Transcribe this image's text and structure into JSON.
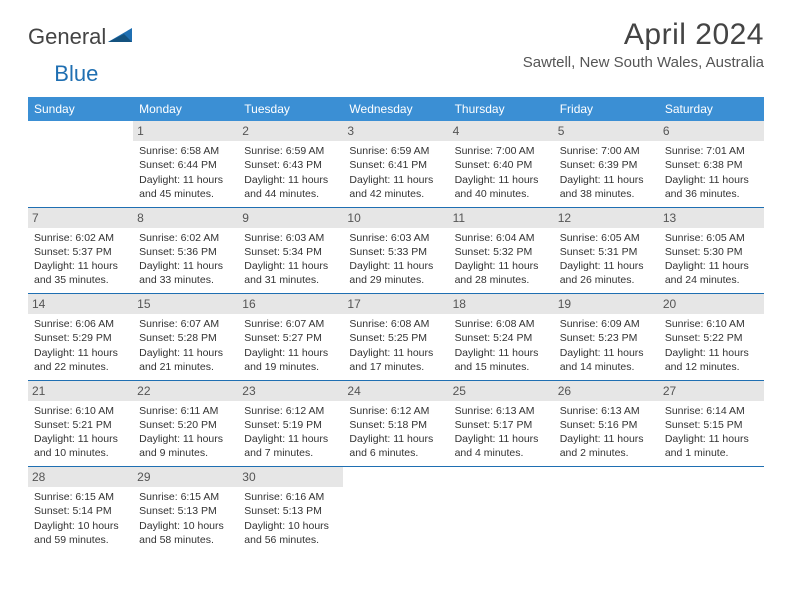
{
  "logo": {
    "text1": "General",
    "text2": "Blue"
  },
  "title": "April 2024",
  "subtitle": "Sawtell, New South Wales, Australia",
  "colors": {
    "header_bg": "#3b8fd4",
    "header_text": "#ffffff",
    "daynum_bg": "#e6e6e6",
    "divider": "#1f6fb2",
    "text": "#333333",
    "page_bg": "#ffffff"
  },
  "typography": {
    "title_fontsize": 30,
    "subtitle_fontsize": 15,
    "header_fontsize": 12,
    "cell_fontsize": 10.5
  },
  "weekdays": [
    "Sunday",
    "Monday",
    "Tuesday",
    "Wednesday",
    "Thursday",
    "Friday",
    "Saturday"
  ],
  "weeks": [
    [
      {
        "day": "",
        "lines": []
      },
      {
        "day": "1",
        "lines": [
          "Sunrise: 6:58 AM",
          "Sunset: 6:44 PM",
          "Daylight: 11 hours and 45 minutes."
        ]
      },
      {
        "day": "2",
        "lines": [
          "Sunrise: 6:59 AM",
          "Sunset: 6:43 PM",
          "Daylight: 11 hours and 44 minutes."
        ]
      },
      {
        "day": "3",
        "lines": [
          "Sunrise: 6:59 AM",
          "Sunset: 6:41 PM",
          "Daylight: 11 hours and 42 minutes."
        ]
      },
      {
        "day": "4",
        "lines": [
          "Sunrise: 7:00 AM",
          "Sunset: 6:40 PM",
          "Daylight: 11 hours and 40 minutes."
        ]
      },
      {
        "day": "5",
        "lines": [
          "Sunrise: 7:00 AM",
          "Sunset: 6:39 PM",
          "Daylight: 11 hours and 38 minutes."
        ]
      },
      {
        "day": "6",
        "lines": [
          "Sunrise: 7:01 AM",
          "Sunset: 6:38 PM",
          "Daylight: 11 hours and 36 minutes."
        ]
      }
    ],
    [
      {
        "day": "7",
        "lines": [
          "Sunrise: 6:02 AM",
          "Sunset: 5:37 PM",
          "Daylight: 11 hours and 35 minutes."
        ]
      },
      {
        "day": "8",
        "lines": [
          "Sunrise: 6:02 AM",
          "Sunset: 5:36 PM",
          "Daylight: 11 hours and 33 minutes."
        ]
      },
      {
        "day": "9",
        "lines": [
          "Sunrise: 6:03 AM",
          "Sunset: 5:34 PM",
          "Daylight: 11 hours and 31 minutes."
        ]
      },
      {
        "day": "10",
        "lines": [
          "Sunrise: 6:03 AM",
          "Sunset: 5:33 PM",
          "Daylight: 11 hours and 29 minutes."
        ]
      },
      {
        "day": "11",
        "lines": [
          "Sunrise: 6:04 AM",
          "Sunset: 5:32 PM",
          "Daylight: 11 hours and 28 minutes."
        ]
      },
      {
        "day": "12",
        "lines": [
          "Sunrise: 6:05 AM",
          "Sunset: 5:31 PM",
          "Daylight: 11 hours and 26 minutes."
        ]
      },
      {
        "day": "13",
        "lines": [
          "Sunrise: 6:05 AM",
          "Sunset: 5:30 PM",
          "Daylight: 11 hours and 24 minutes."
        ]
      }
    ],
    [
      {
        "day": "14",
        "lines": [
          "Sunrise: 6:06 AM",
          "Sunset: 5:29 PM",
          "Daylight: 11 hours and 22 minutes."
        ]
      },
      {
        "day": "15",
        "lines": [
          "Sunrise: 6:07 AM",
          "Sunset: 5:28 PM",
          "Daylight: 11 hours and 21 minutes."
        ]
      },
      {
        "day": "16",
        "lines": [
          "Sunrise: 6:07 AM",
          "Sunset: 5:27 PM",
          "Daylight: 11 hours and 19 minutes."
        ]
      },
      {
        "day": "17",
        "lines": [
          "Sunrise: 6:08 AM",
          "Sunset: 5:25 PM",
          "Daylight: 11 hours and 17 minutes."
        ]
      },
      {
        "day": "18",
        "lines": [
          "Sunrise: 6:08 AM",
          "Sunset: 5:24 PM",
          "Daylight: 11 hours and 15 minutes."
        ]
      },
      {
        "day": "19",
        "lines": [
          "Sunrise: 6:09 AM",
          "Sunset: 5:23 PM",
          "Daylight: 11 hours and 14 minutes."
        ]
      },
      {
        "day": "20",
        "lines": [
          "Sunrise: 6:10 AM",
          "Sunset: 5:22 PM",
          "Daylight: 11 hours and 12 minutes."
        ]
      }
    ],
    [
      {
        "day": "21",
        "lines": [
          "Sunrise: 6:10 AM",
          "Sunset: 5:21 PM",
          "Daylight: 11 hours and 10 minutes."
        ]
      },
      {
        "day": "22",
        "lines": [
          "Sunrise: 6:11 AM",
          "Sunset: 5:20 PM",
          "Daylight: 11 hours and 9 minutes."
        ]
      },
      {
        "day": "23",
        "lines": [
          "Sunrise: 6:12 AM",
          "Sunset: 5:19 PM",
          "Daylight: 11 hours and 7 minutes."
        ]
      },
      {
        "day": "24",
        "lines": [
          "Sunrise: 6:12 AM",
          "Sunset: 5:18 PM",
          "Daylight: 11 hours and 6 minutes."
        ]
      },
      {
        "day": "25",
        "lines": [
          "Sunrise: 6:13 AM",
          "Sunset: 5:17 PM",
          "Daylight: 11 hours and 4 minutes."
        ]
      },
      {
        "day": "26",
        "lines": [
          "Sunrise: 6:13 AM",
          "Sunset: 5:16 PM",
          "Daylight: 11 hours and 2 minutes."
        ]
      },
      {
        "day": "27",
        "lines": [
          "Sunrise: 6:14 AM",
          "Sunset: 5:15 PM",
          "Daylight: 11 hours and 1 minute."
        ]
      }
    ],
    [
      {
        "day": "28",
        "lines": [
          "Sunrise: 6:15 AM",
          "Sunset: 5:14 PM",
          "Daylight: 10 hours and 59 minutes."
        ]
      },
      {
        "day": "29",
        "lines": [
          "Sunrise: 6:15 AM",
          "Sunset: 5:13 PM",
          "Daylight: 10 hours and 58 minutes."
        ]
      },
      {
        "day": "30",
        "lines": [
          "Sunrise: 6:16 AM",
          "Sunset: 5:13 PM",
          "Daylight: 10 hours and 56 minutes."
        ]
      },
      {
        "day": "",
        "lines": []
      },
      {
        "day": "",
        "lines": []
      },
      {
        "day": "",
        "lines": []
      },
      {
        "day": "",
        "lines": []
      }
    ]
  ]
}
